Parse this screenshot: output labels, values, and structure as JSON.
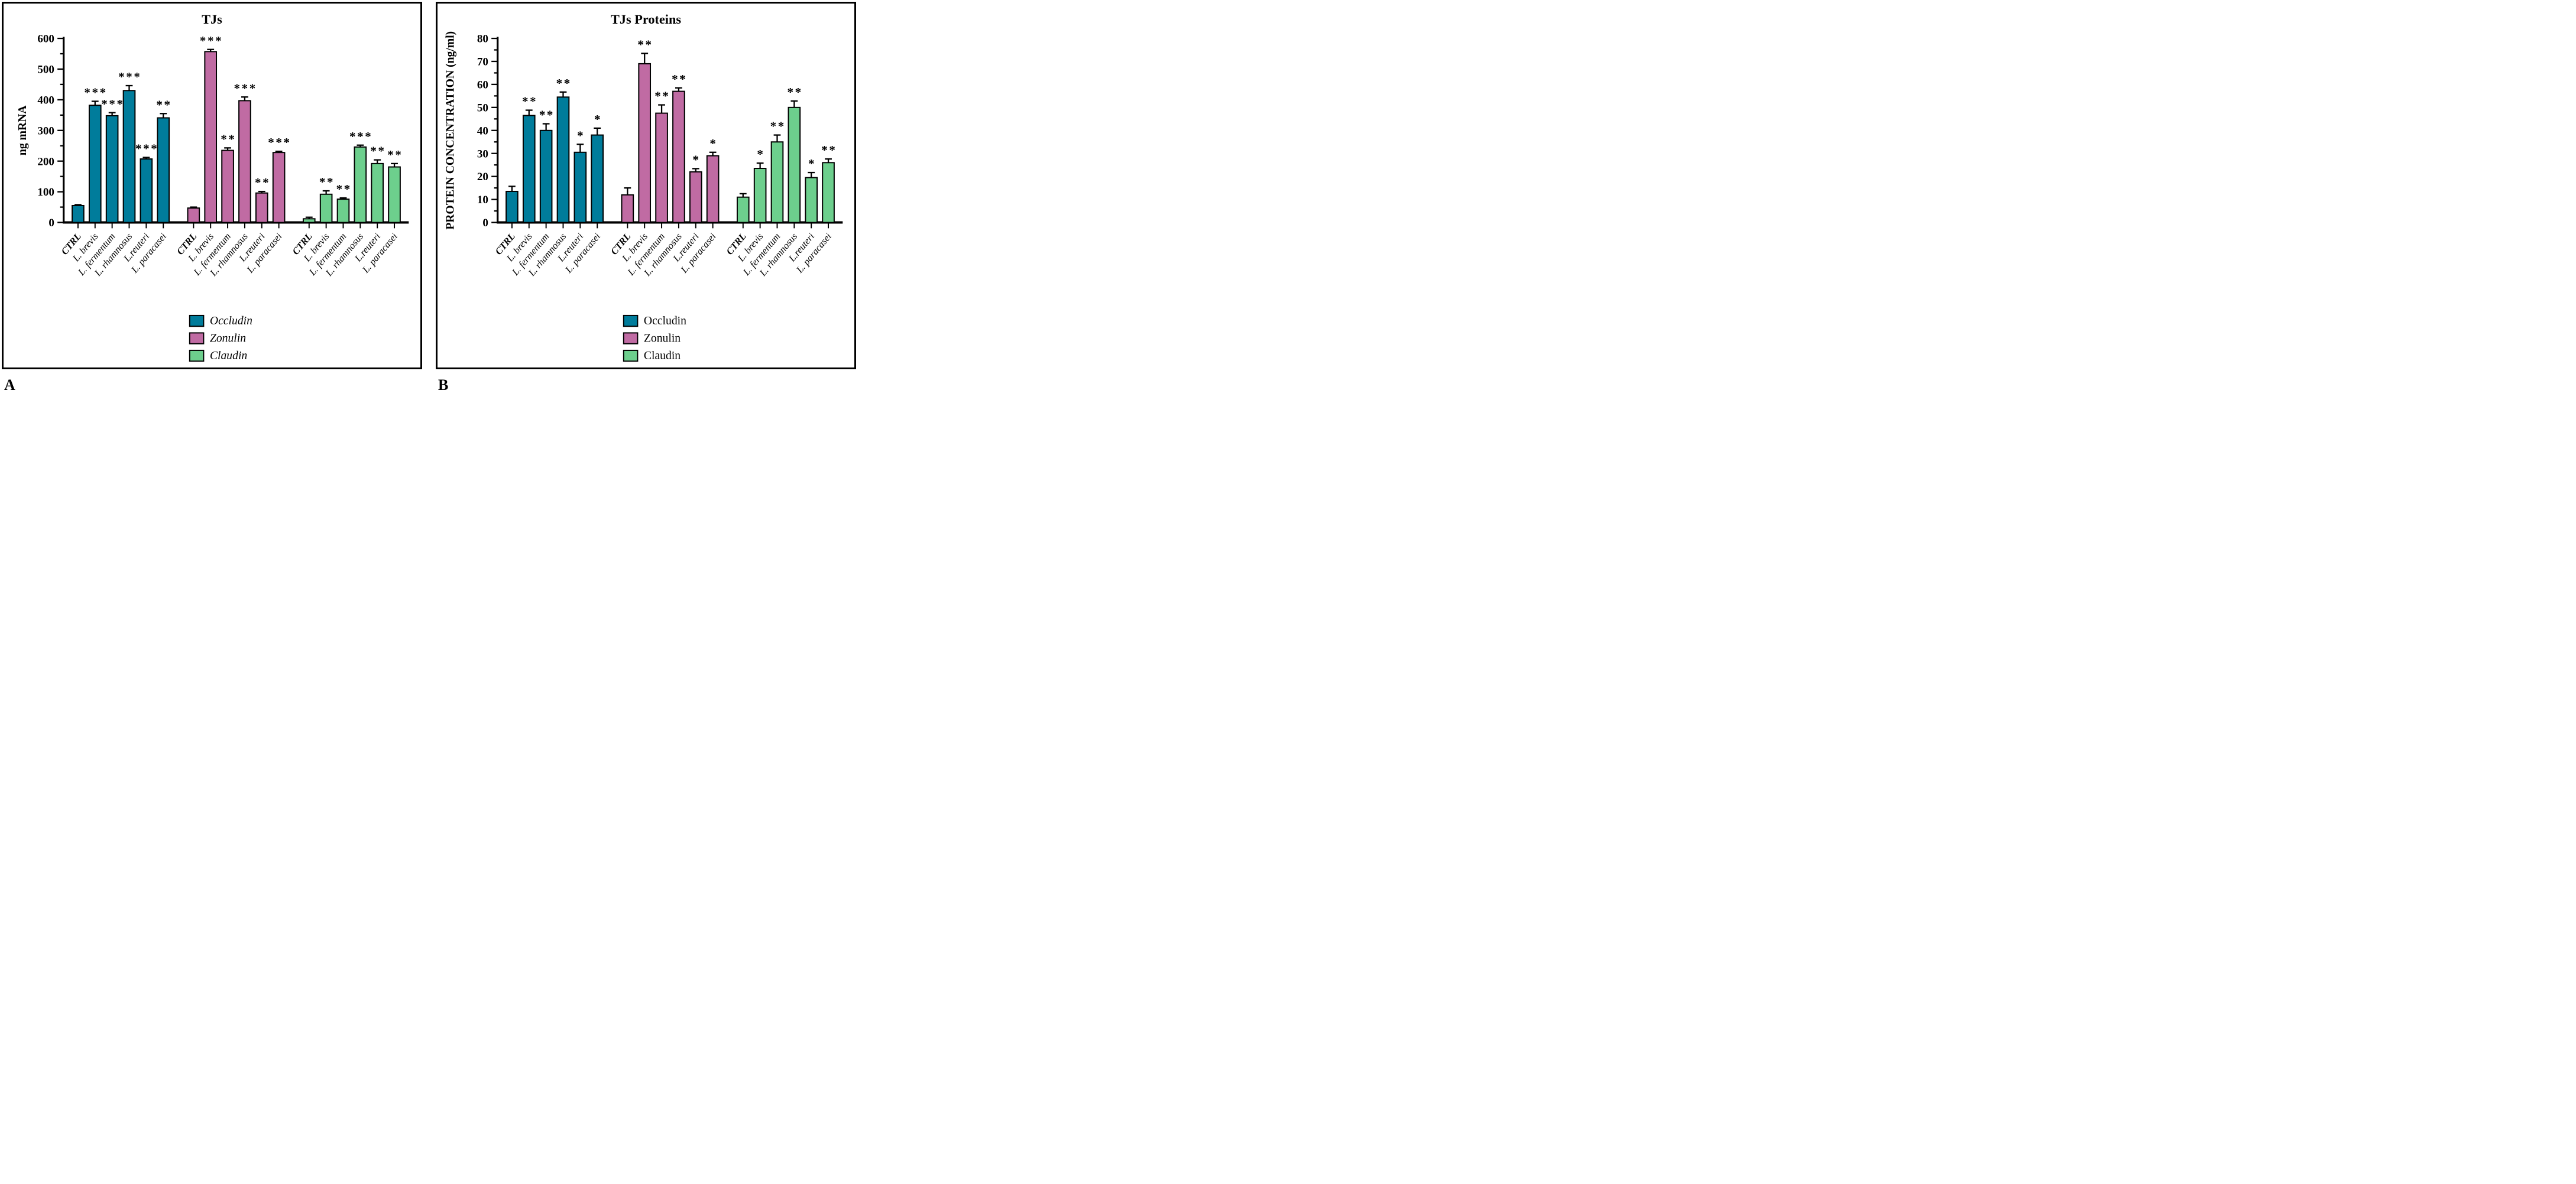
{
  "figure": {
    "panels": [
      {
        "letter": "A"
      },
      {
        "letter": "B"
      }
    ]
  },
  "colors": {
    "occludin": "#007c9b",
    "zonulin": "#c06ba3",
    "claudin": "#6dcf8d",
    "axis": "#000000",
    "background": "#ffffff"
  },
  "chart_data": [
    {
      "type": "bar",
      "panel": "A",
      "title": "TJs",
      "xlabel": "",
      "ylabel": "ng mRNA",
      "ylim": [
        0,
        600
      ],
      "ytick_step": 100,
      "minor_tick_step": 50,
      "grid": false,
      "legend_position": "bottom-center",
      "legend_italic": true,
      "categories": [
        "CTRL",
        "L. brevis",
        "L. fermentum",
        "L. rhamnosus",
        "L.reuteri",
        "L. paracasei"
      ],
      "series": [
        {
          "name": "Occludin",
          "color": "#007c9b",
          "values": [
            55,
            382,
            348,
            430,
            207,
            341
          ],
          "errors": [
            3,
            13,
            10,
            16,
            5,
            14
          ],
          "stars": [
            "",
            "***",
            "***",
            "***",
            "***",
            "**"
          ]
        },
        {
          "name": "Zonulin",
          "color": "#c06ba3",
          "values": [
            47,
            557,
            235,
            397,
            96,
            228
          ],
          "errors": [
            3,
            7,
            8,
            12,
            5,
            4
          ],
          "stars": [
            "",
            "***",
            "**",
            "***",
            "**",
            "***"
          ]
        },
        {
          "name": "Claudin",
          "color": "#6dcf8d",
          "values": [
            12,
            92,
            76,
            246,
            192,
            181
          ],
          "errors": [
            5,
            11,
            4,
            6,
            12,
            11
          ],
          "stars": [
            "",
            "**",
            "**",
            "***",
            "**",
            "**"
          ]
        }
      ]
    },
    {
      "type": "bar",
      "panel": "B",
      "title": "TJs Proteins",
      "xlabel": "",
      "ylabel": "PROTEIN CONCENTRATION (ng/ml)",
      "ylim": [
        0,
        80
      ],
      "ytick_step": 10,
      "minor_tick_step": 5,
      "grid": false,
      "legend_position": "bottom-center",
      "legend_italic": false,
      "categories": [
        "CTRL",
        "L. brevis",
        "L. fermentum",
        "L. rhamnosus",
        "L.reuteri",
        "L. paracasei"
      ],
      "series": [
        {
          "name": "Occludin",
          "color": "#007c9b",
          "values": [
            13.5,
            46.5,
            40,
            54.5,
            30.5,
            38
          ],
          "errors": [
            2.2,
            2.3,
            2.9,
            2.2,
            3.5,
            3
          ],
          "stars": [
            "",
            "**",
            "**",
            "**",
            "*",
            "*"
          ]
        },
        {
          "name": "Zonulin",
          "color": "#c06ba3",
          "values": [
            12,
            69,
            47.5,
            57,
            22,
            29
          ],
          "errors": [
            3,
            4.5,
            3.6,
            1.5,
            1.4,
            1.5
          ],
          "stars": [
            "",
            "**",
            "**",
            "**",
            "*",
            "*"
          ]
        },
        {
          "name": "Claudin",
          "color": "#6dcf8d",
          "values": [
            11,
            23.5,
            35,
            50,
            19.5,
            26
          ],
          "errors": [
            1.5,
            2.3,
            3,
            2.8,
            2.2,
            1.6
          ],
          "stars": [
            "",
            "*",
            "**",
            "**",
            "*",
            "**"
          ]
        }
      ]
    }
  ]
}
